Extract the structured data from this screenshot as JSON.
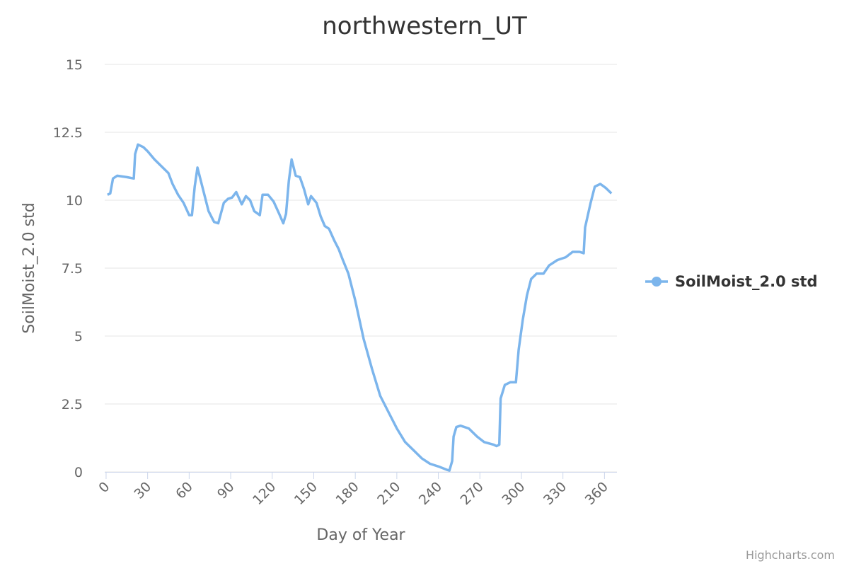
{
  "chart_data": {
    "type": "line",
    "title": "northwestern_UT",
    "x_label": "Day of Year",
    "y_label": "SoilMoist_2.0 std",
    "xlim": [
      -1,
      369
    ],
    "ylim": [
      0,
      15
    ],
    "xticks": [
      0,
      30,
      60,
      90,
      120,
      150,
      180,
      210,
      240,
      270,
      300,
      330,
      360
    ],
    "yticks": [
      0,
      2.5,
      5,
      7.5,
      10,
      12.5,
      15
    ],
    "grid": true,
    "legend": "right",
    "credits": "Highcharts.com",
    "x": [
      1,
      3,
      5,
      8,
      15,
      20,
      21,
      23,
      27,
      30,
      35,
      40,
      45,
      48,
      52,
      56,
      60,
      62,
      64,
      66,
      69,
      71,
      74,
      78,
      81,
      85,
      88,
      91,
      94,
      98,
      101,
      104,
      107,
      111,
      113,
      117,
      121,
      125,
      128,
      130,
      132,
      134,
      137,
      140,
      143,
      146,
      148,
      152,
      155,
      158,
      161,
      165,
      168,
      171,
      175,
      180,
      186,
      192,
      198,
      204,
      210,
      216,
      222,
      228,
      234,
      240,
      246,
      248,
      250,
      251,
      253,
      256,
      262,
      268,
      273,
      280,
      282,
      284,
      285,
      288,
      292,
      295,
      296,
      298,
      301,
      304,
      307,
      311,
      316,
      320,
      326,
      332,
      337,
      342,
      345,
      346,
      350,
      353,
      357,
      361,
      365
    ],
    "series": [
      {
        "name": "SoilMoist_2.0 std",
        "color": "#7cb5ec",
        "values": [
          10.2,
          10.25,
          10.8,
          10.9,
          10.85,
          10.8,
          11.7,
          12.05,
          11.95,
          11.8,
          11.5,
          11.25,
          11.0,
          10.6,
          10.2,
          9.9,
          9.45,
          9.45,
          10.5,
          11.2,
          10.6,
          10.2,
          9.6,
          9.2,
          9.15,
          9.9,
          10.05,
          10.1,
          10.3,
          9.85,
          10.15,
          10.0,
          9.6,
          9.45,
          10.2,
          10.2,
          9.95,
          9.5,
          9.15,
          9.5,
          10.7,
          11.5,
          10.9,
          10.85,
          10.4,
          9.85,
          10.15,
          9.9,
          9.4,
          9.05,
          8.95,
          8.5,
          8.2,
          7.8,
          7.3,
          6.3,
          4.9,
          3.8,
          2.8,
          2.2,
          1.6,
          1.1,
          0.8,
          0.5,
          0.3,
          0.2,
          0.08,
          0.05,
          0.4,
          1.3,
          1.65,
          1.7,
          1.6,
          1.3,
          1.1,
          1.0,
          0.95,
          1.0,
          2.7,
          3.2,
          3.3,
          3.3,
          3.3,
          4.5,
          5.6,
          6.5,
          7.1,
          7.3,
          7.3,
          7.6,
          7.8,
          7.9,
          8.1,
          8.1,
          8.05,
          9.0,
          9.9,
          10.5,
          10.6,
          10.45,
          10.25
        ]
      }
    ]
  }
}
